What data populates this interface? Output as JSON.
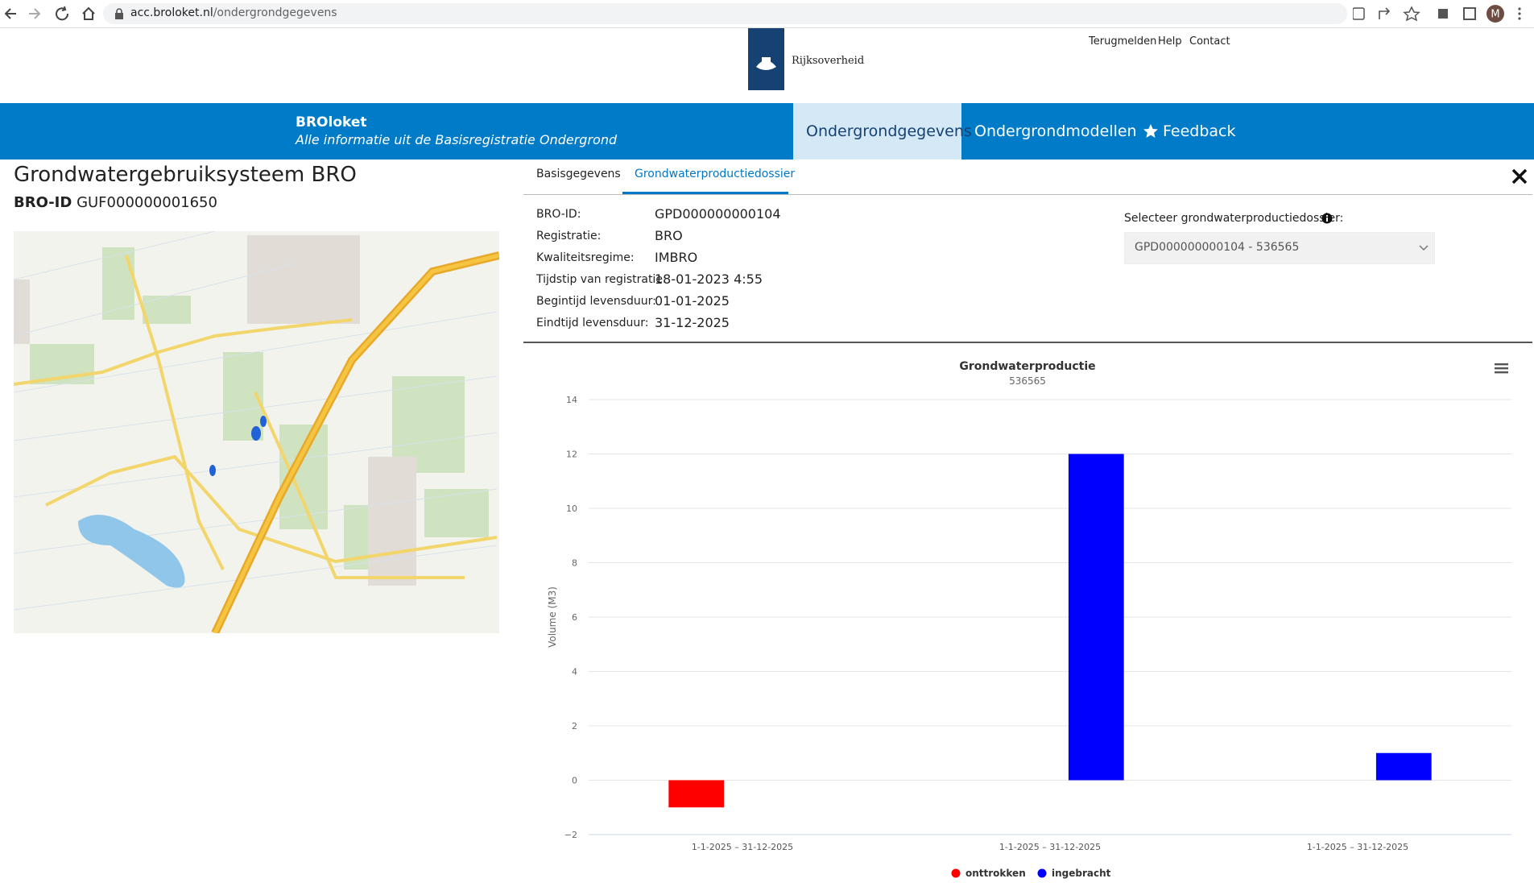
{
  "browser": {
    "url_host": "acc.broloket.nl",
    "url_path": "/ondergrondgegevens",
    "avatar": "M"
  },
  "header": {
    "logo_text": "Rijksoverheid",
    "links": [
      "Terugmelden",
      "Help",
      "Contact"
    ]
  },
  "nav": {
    "brand": "BROloket",
    "tagline": "Alle informatie uit de Basisregistratie Ondergrond",
    "tabs": [
      "Ondergrondgegevens",
      "Ondergrondmodellen",
      "Feedback"
    ]
  },
  "object": {
    "title": "Grondwatergebruiksysteem BRO",
    "id_label": "BRO-ID",
    "id_value": "GUF000000001650"
  },
  "detail_tabs": [
    "Basisgegevens",
    "Grondwaterproductiedossier"
  ],
  "fields": [
    {
      "label": "BRO-ID:",
      "value": "GPD000000000104"
    },
    {
      "label": "Registratie:",
      "value": "BRO"
    },
    {
      "label": "Kwaliteitsregime:",
      "value": "IMBRO"
    },
    {
      "label": "Tijdstip van registratie:",
      "value": "18-01-2023 4:55"
    },
    {
      "label": "Begintijd levensduur:",
      "value": "01-01-2025"
    },
    {
      "label": "Eindtijd levensduur:",
      "value": "31-12-2025"
    }
  ],
  "selector": {
    "label": "Selecteer grondwaterproductiedossier:",
    "value": "GPD000000000104 - 536565"
  },
  "chart_data": {
    "type": "bar",
    "title": "Grondwaterproductie",
    "subtitle": "536565",
    "y_label": "Volume (M3)",
    "categories": [
      "1-1-2025 – 31-12-2025",
      "1-1-2025 – 31-12-2025",
      "1-1-2025 – 31-12-2025"
    ],
    "series": [
      {
        "name": "onttrokken",
        "color": "#ff0000",
        "values": [
          -1,
          null,
          null
        ]
      },
      {
        "name": "ingebracht",
        "color": "#0000ff",
        "values": [
          null,
          12,
          1
        ]
      }
    ],
    "ylim": [
      -2,
      14
    ],
    "yticks": [
      {
        "value": -2,
        "label": "−2"
      },
      0,
      2,
      4,
      6,
      8,
      10,
      12,
      14
    ],
    "grid": true
  }
}
